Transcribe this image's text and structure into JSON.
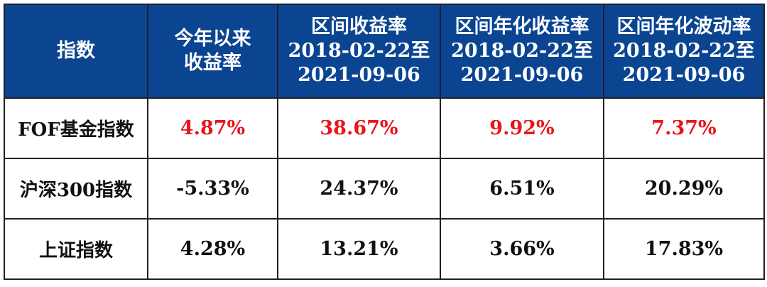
{
  "table": {
    "header": [
      [
        "指数"
      ],
      [
        "今年以来",
        "收益率"
      ],
      [
        "区间收益率",
        "2018-02-22至",
        "2021-09-06"
      ],
      [
        "区间年化收益率",
        "2018-02-22至",
        "2021-09-06"
      ],
      [
        "区间年化波动率",
        "2018-02-22至",
        "2021-09-06"
      ]
    ],
    "rows": [
      [
        "FOF基金指数",
        "4.87%",
        "38.67%",
        "9.92%",
        "7.37%"
      ],
      [
        "沪深300指数",
        "-5.33%",
        "24.37%",
        "6.51%",
        "20.29%"
      ],
      [
        "上证指数",
        "4.28%",
        "13.21%",
        "3.66%",
        "17.83%"
      ]
    ]
  }
}
